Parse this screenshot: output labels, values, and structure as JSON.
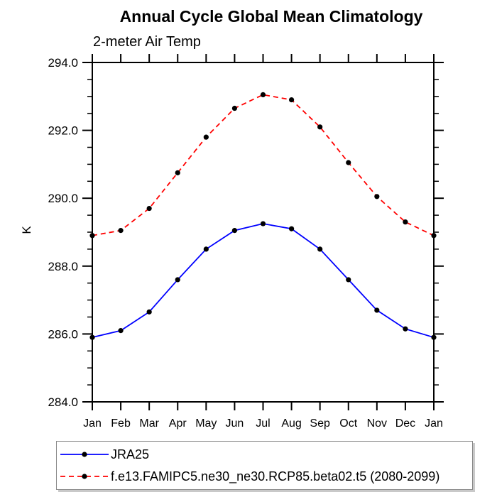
{
  "title": "Annual Cycle Global Mean Climatology",
  "subtitle": "2-meter Air Temp",
  "colors": {
    "axis": "#000000",
    "marker": "#000000",
    "series1": "#0000ff",
    "series2": "#ff0000",
    "legend_border": "#8a8a8a"
  },
  "chart_data": {
    "type": "line",
    "title": "Annual Cycle Global Mean Climatology",
    "subtitle": "2-meter Air Temp",
    "xlabel": "",
    "ylabel": "K",
    "ylim": [
      284.0,
      294.0
    ],
    "y_major_ticks": [
      284.0,
      286.0,
      288.0,
      290.0,
      292.0,
      294.0
    ],
    "y_minor_step": 0.5,
    "grid": false,
    "legend_position": "bottom-left",
    "categories": [
      "Jan",
      "Feb",
      "Mar",
      "Apr",
      "May",
      "Jun",
      "Jul",
      "Aug",
      "Sep",
      "Oct",
      "Nov",
      "Dec",
      "Jan"
    ],
    "series": [
      {
        "name": "JRA25",
        "color": "#0000ff",
        "line_style": "solid",
        "marker": "filled-black-circle",
        "values": [
          285.9,
          286.1,
          286.65,
          287.6,
          288.5,
          289.05,
          289.25,
          289.1,
          288.5,
          287.6,
          286.7,
          286.15,
          285.9
        ]
      },
      {
        "name": "f.e13.FAMIPC5.ne30_ne30.RCP85.beta02.t5 (2080-2099)",
        "color": "#ff0000",
        "line_style": "dashed",
        "marker": "filled-black-circle",
        "values": [
          288.9,
          289.05,
          289.7,
          290.75,
          291.8,
          292.65,
          293.05,
          292.9,
          292.1,
          291.05,
          290.05,
          289.3,
          288.9
        ]
      }
    ]
  }
}
